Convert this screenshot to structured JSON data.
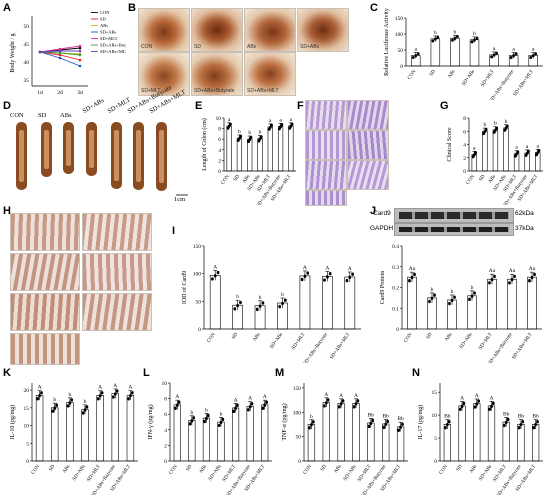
{
  "panels": {
    "A": "A",
    "B": "B",
    "C": "C",
    "D": "D",
    "E": "E",
    "F": "F",
    "G": "G",
    "H": "H",
    "I": "I",
    "J": "J",
    "K": "K",
    "L": "L",
    "M": "M",
    "N": "N"
  },
  "panel_a": {
    "ylabel": "Body Weight / g",
    "yticks": [
      "50",
      "45",
      "40",
      "35"
    ],
    "xticks": [
      "1d",
      "2d",
      "3d"
    ],
    "legend": [
      "CON",
      "SD",
      "ABs",
      "SD+ABs",
      "SD+MLT",
      "SD+ABs+Butyrate",
      "SD+ABs+MLT"
    ],
    "colors": [
      "#000000",
      "#e8201a",
      "#f0a020",
      "#1a50c8",
      "#e030a0",
      "#30a040",
      "#6040c0"
    ]
  },
  "panel_b": {
    "captions": [
      "CON",
      "SD",
      "ABs",
      "SD+ABs",
      "SD+MLT",
      "SD+ABs+Butyrate",
      "SD+ABs+MLT"
    ]
  },
  "panel_d": {
    "labels": [
      "CON",
      "SD",
      "ABs",
      "SD+ABs",
      "SD+MLT",
      "SD+ABs+Butyrate",
      "SD+ABs+MLT"
    ],
    "scale": "1cm"
  },
  "panel_j": {
    "bands": [
      "Card9",
      "GAPDH"
    ],
    "sizes": [
      "62kDa",
      "37kDa"
    ]
  },
  "groups": [
    "CON",
    "SD",
    "ABs",
    "SD+ABs",
    "SD+MLT",
    "SD+ABs+Butyrate",
    "SD+ABs+MLT"
  ],
  "chart_data": [
    {
      "id": "C",
      "type": "bar",
      "ylabel": "Relative Luciferase Activity",
      "yticks": [
        0,
        50,
        100,
        150
      ],
      "ylim": [
        0,
        150
      ],
      "values": [
        33,
        85,
        87,
        82,
        35,
        33,
        33
      ],
      "letters": [
        "a",
        "b",
        "b",
        "b",
        "a",
        "a",
        "a"
      ]
    },
    {
      "id": "E",
      "type": "bar",
      "ylabel": "Length of Colon (cm)",
      "yticks": [
        0,
        2,
        4,
        6,
        8,
        10
      ],
      "ylim": [
        0,
        10
      ],
      "values": [
        8.5,
        6.2,
        6.0,
        6.1,
        8.3,
        8.4,
        8.5
      ],
      "letters": [
        "a",
        "b",
        "b",
        "b",
        "a",
        "a",
        "a"
      ]
    },
    {
      "id": "G",
      "type": "bar",
      "ylabel": "Clinical Score",
      "yticks": [
        0,
        2,
        4,
        6,
        8
      ],
      "ylim": [
        0,
        8
      ],
      "values": [
        2.5,
        6.0,
        6.2,
        6.5,
        2.6,
        2.7,
        2.8
      ],
      "letters": [
        "a",
        "b",
        "b",
        "b",
        "a",
        "a",
        "a"
      ]
    },
    {
      "id": "I",
      "type": "bar",
      "ylabel": "IOD of Card9",
      "yticks": [
        0,
        50,
        100,
        150
      ],
      "ylim": [
        0,
        150
      ],
      "values": [
        97,
        43,
        42,
        47,
        96,
        95,
        94
      ],
      "letters": [
        "A",
        "b",
        "b",
        "b",
        "A",
        "A",
        "A"
      ]
    },
    {
      "id": "J",
      "type": "bar",
      "ylabel": "Card9 Protein",
      "yticks": [
        0.0,
        0.1,
        0.2,
        0.3,
        0.4
      ],
      "ylim": [
        0,
        0.4
      ],
      "values": [
        0.25,
        0.15,
        0.14,
        0.16,
        0.24,
        0.24,
        0.25
      ],
      "letters": [
        "Aa",
        "b",
        "b",
        "b",
        "Aa",
        "Aa",
        "Aa"
      ]
    },
    {
      "id": "K",
      "type": "bar",
      "ylabel": "IL-10 (pg/mg)",
      "yticks": [
        0,
        5,
        10,
        15,
        20
      ],
      "ylim": [
        0,
        22
      ],
      "values": [
        18.5,
        15.0,
        16.5,
        14.5,
        18.5,
        19.0,
        18.5
      ],
      "letters": [
        "A",
        "b",
        "b",
        "b",
        "A",
        "A",
        "A"
      ]
    },
    {
      "id": "L",
      "type": "bar",
      "ylabel": "IFN-γ (pg/mg)",
      "yticks": [
        0,
        2,
        4,
        6,
        8,
        10
      ],
      "ylim": [
        0,
        10
      ],
      "values": [
        7.2,
        5.2,
        5.5,
        5.0,
        6.8,
        7.0,
        7.2
      ],
      "letters": [
        "A",
        "b",
        "b",
        "b",
        "A",
        "A",
        "A"
      ]
    },
    {
      "id": "M",
      "type": "bar",
      "ylabel": "TNF-α (pg/mg)",
      "yticks": [
        0,
        50,
        100,
        150
      ],
      "ylim": [
        0,
        160
      ],
      "values": [
        75,
        120,
        118,
        118,
        78,
        76,
        70
      ],
      "letters": [
        "b",
        "A",
        "A",
        "A",
        "Bb",
        "Bb",
        "Bb"
      ]
    },
    {
      "id": "N",
      "type": "bar",
      "ylabel": "IL-17 (pg/mg)",
      "yticks": [
        0,
        5,
        10,
        15
      ],
      "ylim": [
        0,
        17
      ],
      "values": [
        8.0,
        12.0,
        12.5,
        12.0,
        8.5,
        8.0,
        8.0
      ],
      "letters": [
        "Bb",
        "A",
        "A",
        "A",
        "Bb",
        "Bb",
        "Bb"
      ]
    }
  ]
}
